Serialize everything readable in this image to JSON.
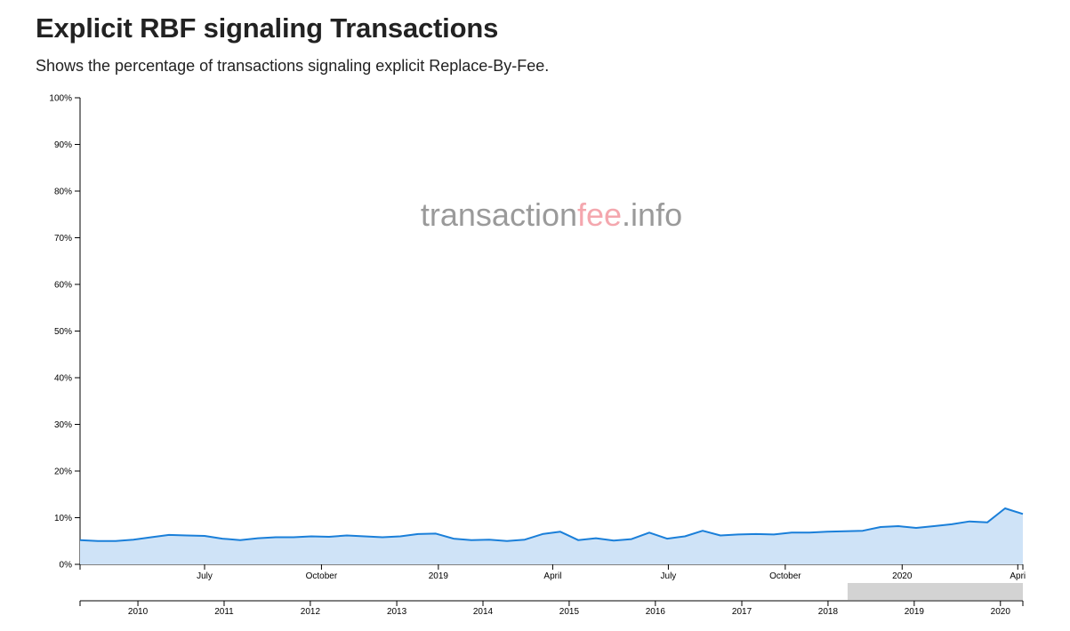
{
  "header": {
    "title": "Explicit RBF signaling Transactions",
    "subtitle": "Shows the percentage of transactions signaling explicit Replace-By-Fee."
  },
  "watermark": {
    "part1": "transaction",
    "part2": "fee",
    "part3": ".info",
    "color_gray": "#9a9a9a",
    "color_accent": "#f4a7ae"
  },
  "colors": {
    "line": "#1a7fd9",
    "area": "#cfe3f7",
    "brush": "#d3d3d3"
  },
  "chart_data": {
    "type": "area",
    "xlabel": "",
    "ylabel": "",
    "ylim": [
      0,
      100
    ],
    "y_tick_labels": [
      "0%",
      "10%",
      "20%",
      "30%",
      "40%",
      "50%",
      "60%",
      "70%",
      "80%",
      "90%",
      "100%"
    ],
    "xlim": [
      "2018-03-25",
      "2020-04-05"
    ],
    "x_tick_labels": [
      {
        "date": "2018-07-01",
        "label": "July"
      },
      {
        "date": "2018-10-01",
        "label": "October"
      },
      {
        "date": "2019-01-01",
        "label": "2019"
      },
      {
        "date": "2019-04-01",
        "label": "April"
      },
      {
        "date": "2019-07-01",
        "label": "July"
      },
      {
        "date": "2019-10-01",
        "label": "October"
      },
      {
        "date": "2020-01-01",
        "label": "2020"
      },
      {
        "date": "2020-04-01",
        "label": "Apri"
      }
    ],
    "series": [
      {
        "x": [
          "2018-03-25",
          "2018-04-08",
          "2018-04-22",
          "2018-05-06",
          "2018-05-20",
          "2018-06-03",
          "2018-06-17",
          "2018-07-01",
          "2018-07-15",
          "2018-07-29",
          "2018-08-12",
          "2018-08-26",
          "2018-09-09",
          "2018-09-23",
          "2018-10-07",
          "2018-10-21",
          "2018-11-04",
          "2018-11-18",
          "2018-12-02",
          "2018-12-16",
          "2018-12-30",
          "2019-01-13",
          "2019-01-27",
          "2019-02-10",
          "2019-02-24",
          "2019-03-10",
          "2019-03-24",
          "2019-04-07",
          "2019-04-21",
          "2019-05-05",
          "2019-05-19",
          "2019-06-02",
          "2019-06-16",
          "2019-06-30",
          "2019-07-14",
          "2019-07-28",
          "2019-08-11",
          "2019-08-25",
          "2019-09-08",
          "2019-09-22",
          "2019-10-06",
          "2019-10-20",
          "2019-11-03",
          "2019-11-17",
          "2019-12-01",
          "2019-12-15",
          "2019-12-29",
          "2020-01-12",
          "2020-01-26",
          "2020-02-09",
          "2020-02-23",
          "2020-03-08",
          "2020-03-22",
          "2020-04-05"
        ],
        "values": [
          5.2,
          5.0,
          5.0,
          5.3,
          5.8,
          6.3,
          6.2,
          6.1,
          5.5,
          5.2,
          5.6,
          5.8,
          5.8,
          6.0,
          5.9,
          6.2,
          6.0,
          5.8,
          6.0,
          6.5,
          6.6,
          5.5,
          5.2,
          5.3,
          5.0,
          5.3,
          6.5,
          7.0,
          5.2,
          5.6,
          5.1,
          5.4,
          6.8,
          5.5,
          6.0,
          7.2,
          6.2,
          6.4,
          6.5,
          6.4,
          6.8,
          6.8,
          7.0,
          7.1,
          7.2,
          8.0,
          8.2,
          7.8,
          8.2,
          8.6,
          9.2,
          9.0,
          12.0,
          10.8
        ]
      }
    ],
    "brush": {
      "xlim": [
        "2009-05-01",
        "2020-04-05"
      ],
      "tick_labels": [
        {
          "date": "2010-01-01",
          "label": "2010"
        },
        {
          "date": "2011-01-01",
          "label": "2011"
        },
        {
          "date": "2012-01-01",
          "label": "2012"
        },
        {
          "date": "2013-01-01",
          "label": "2013"
        },
        {
          "date": "2014-01-01",
          "label": "2014"
        },
        {
          "date": "2015-01-01",
          "label": "2015"
        },
        {
          "date": "2016-01-01",
          "label": "2016"
        },
        {
          "date": "2017-01-01",
          "label": "2017"
        },
        {
          "date": "2018-01-01",
          "label": "2018"
        },
        {
          "date": "2019-01-01",
          "label": "2019"
        },
        {
          "date": "2020-01-01",
          "label": "2020"
        }
      ],
      "selection": [
        "2018-03-25",
        "2020-04-05"
      ]
    }
  }
}
